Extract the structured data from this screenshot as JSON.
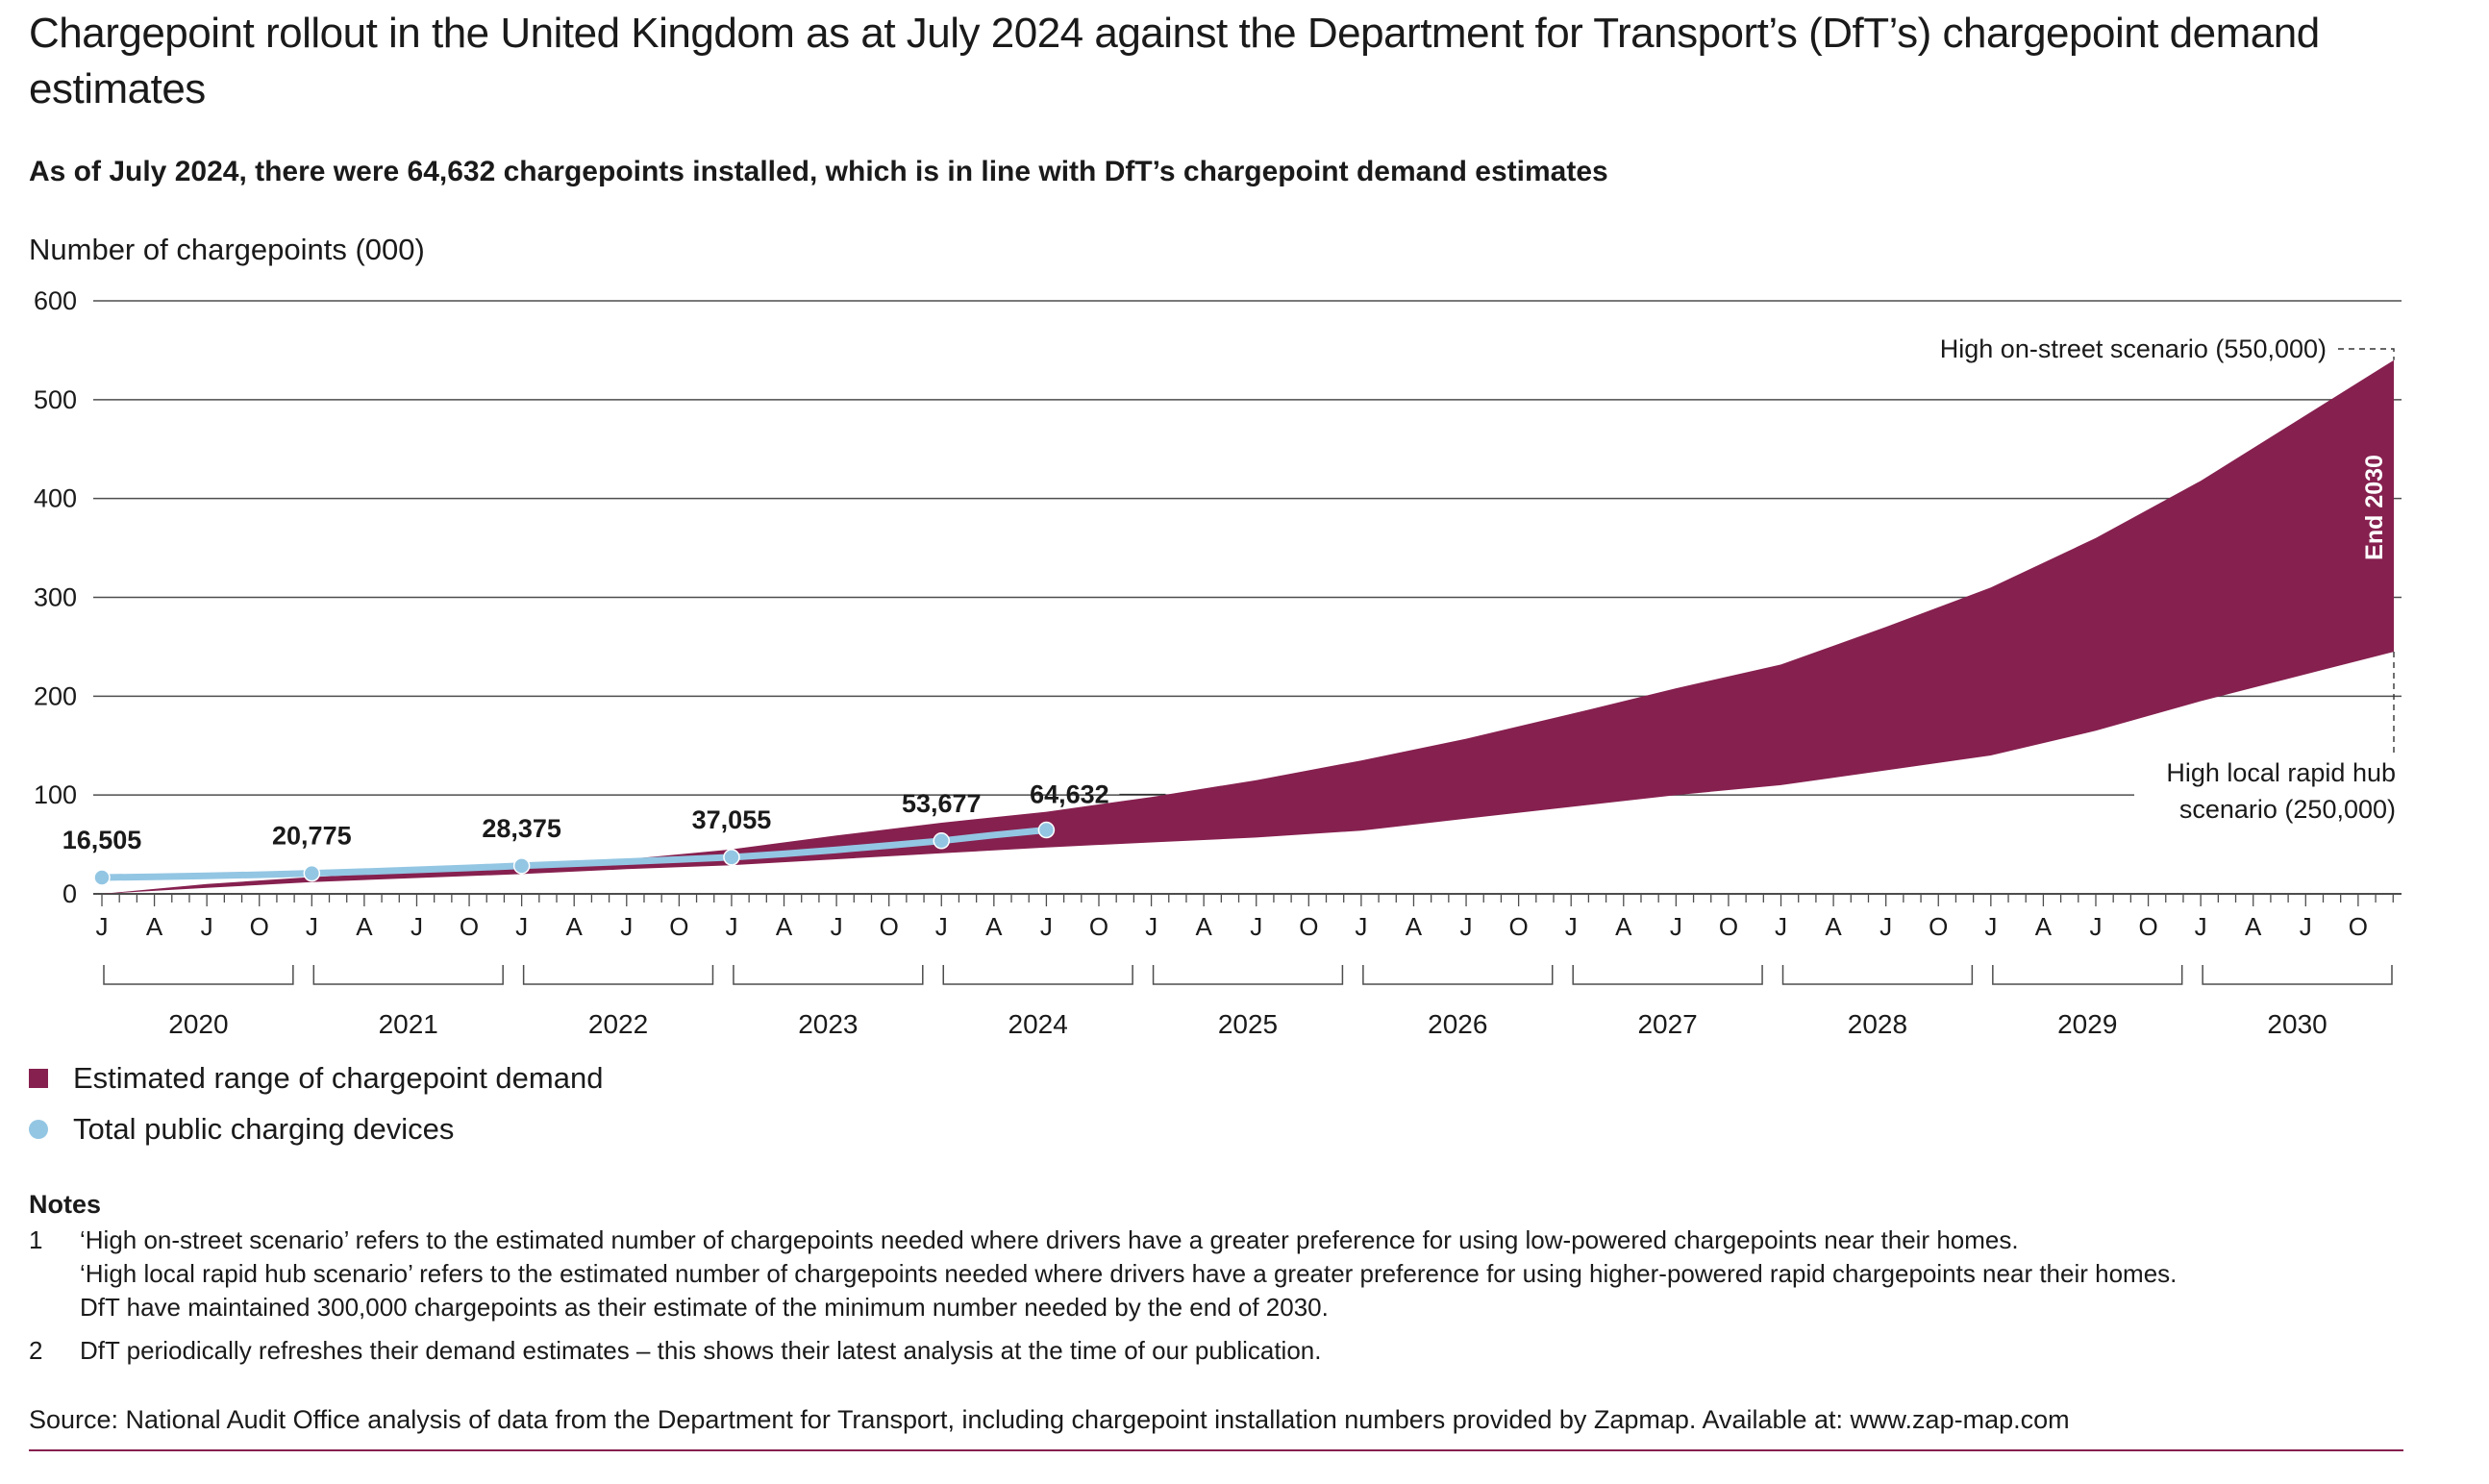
{
  "title": "Chargepoint rollout in the United Kingdom as at July 2024 against the Department for Transport’s (DfT’s) chargepoint demand estimates",
  "subtitle": "As of July 2024, there were 64,632 chargepoints installed, which is in line with DfT’s chargepoint demand estimates",
  "y_axis_label": "Number of chargepoints (000)",
  "colors": {
    "range": "#86204f",
    "devices": "#93c6e3",
    "grid": "#4d4d4d"
  },
  "chart_data": {
    "type": "area",
    "ylabel": "Number of chargepoints (000)",
    "ylim": [
      0,
      600
    ],
    "yticks": [
      0,
      100,
      200,
      300,
      400,
      500,
      600
    ],
    "xlim": [
      2020.0,
      2030.92
    ],
    "years": [
      "2020",
      "2021",
      "2022",
      "2023",
      "2024",
      "2025",
      "2026",
      "2027",
      "2028",
      "2029",
      "2030"
    ],
    "month_ticks": [
      "J",
      "A",
      "J",
      "O"
    ],
    "series": [
      {
        "name": "Estimated range of chargepoint demand",
        "type": "band",
        "x": [
          2020.0,
          2020.5,
          2021.0,
          2021.5,
          2022.0,
          2022.5,
          2023.0,
          2023.5,
          2024.0,
          2024.5,
          2025.0,
          2025.5,
          2026.0,
          2026.5,
          2027.0,
          2027.5,
          2028.0,
          2028.5,
          2029.0,
          2029.5,
          2030.0,
          2030.92
        ],
        "lower": [
          0,
          6,
          12,
          16,
          20,
          25,
          29,
          35,
          41,
          47,
          52,
          57,
          64,
          76,
          88,
          100,
          110,
          125,
          140,
          165,
          195,
          245
        ],
        "upper": [
          0,
          10,
          17,
          22,
          27,
          35,
          45,
          59,
          72,
          83,
          98,
          115,
          135,
          157,
          182,
          208,
          232,
          270,
          310,
          360,
          418,
          540
        ]
      },
      {
        "name": "Total public charging devices",
        "type": "line",
        "x": [
          2020.0,
          2020.25,
          2020.5,
          2020.75,
          2021.0,
          2021.25,
          2021.5,
          2021.75,
          2022.0,
          2022.25,
          2022.5,
          2022.75,
          2023.0,
          2023.25,
          2023.5,
          2023.75,
          2024.0,
          2024.25,
          2024.5
        ],
        "values": [
          16.505,
          17.3,
          18.2,
          19.4,
          20.775,
          22.5,
          24.3,
          26.3,
          28.375,
          30.5,
          32.6,
          34.8,
          37.055,
          40.5,
          44.5,
          49.0,
          53.677,
          59.5,
          64.632
        ],
        "labelled_points": [
          {
            "x": 2020.0,
            "value": 16.505,
            "label": "16,505"
          },
          {
            "x": 2021.0,
            "value": 20.775,
            "label": "20,775"
          },
          {
            "x": 2022.0,
            "value": 28.375,
            "label": "28,375"
          },
          {
            "x": 2023.0,
            "value": 37.055,
            "label": "37,055"
          },
          {
            "x": 2024.0,
            "value": 53.677,
            "label": "53,677"
          },
          {
            "x": 2024.5,
            "value": 64.632,
            "label": "64,632"
          }
        ]
      }
    ],
    "annotations": {
      "high_on_street": "High on-street scenario (550,000)",
      "high_rapid_hub_line1": "High local rapid hub",
      "high_rapid_hub_line2": "scenario (250,000)",
      "end_label": "End 2030"
    },
    "legend": [
      "Estimated range of chargepoint demand",
      "Total public charging devices"
    ],
    "legend_position": "bottom-left",
    "grid": true
  },
  "legend": {
    "range": "Estimated range of chargepoint demand",
    "devices": "Total public charging devices"
  },
  "notes": {
    "title": "Notes",
    "items": [
      {
        "num": "1",
        "lines": [
          "‘High on-street scenario’ refers to the estimated number of chargepoints needed where drivers have a greater preference for using low-powered chargepoints near their homes.",
          "‘High local rapid hub scenario’ refers to the estimated number of chargepoints needed where drivers have a greater preference for using higher-powered rapid chargepoints near their homes.",
          "DfT have maintained 300,000 chargepoints as their estimate of the minimum number needed by the end of 2030."
        ]
      },
      {
        "num": "2",
        "lines": [
          "DfT periodically refreshes their demand estimates – this shows their latest analysis at the time of our publication."
        ]
      }
    ]
  },
  "source": "Source: National Audit Office analysis of data from the Department for Transport, including chargepoint installation numbers provided by Zapmap. Available at: www.zap-map.com"
}
